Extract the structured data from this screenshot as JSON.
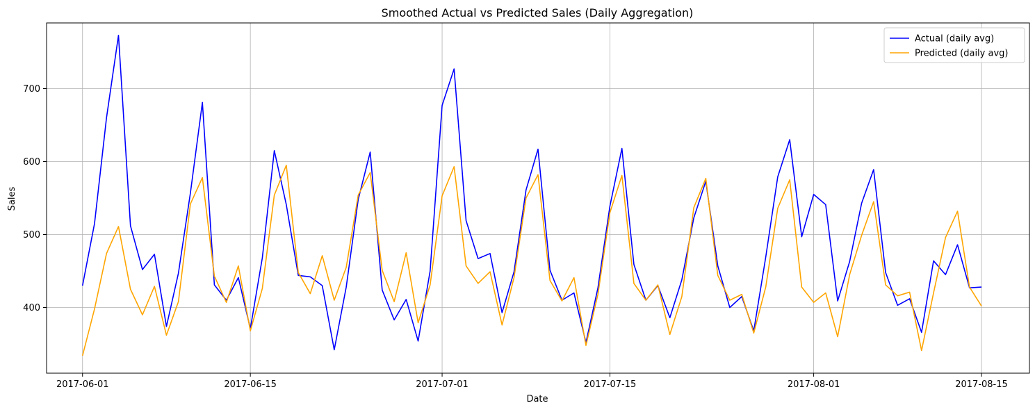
{
  "chart_data": {
    "type": "line",
    "title": "Smoothed Actual vs Predicted Sales (Daily Aggregation)",
    "xlabel": "Date",
    "ylabel": "Sales",
    "x_start": "2017-06-01",
    "x_end": "2017-08-15",
    "xlim": [
      "2017-05-29",
      "2017-08-19"
    ],
    "ylim": [
      310,
      790
    ],
    "x_ticks": [
      "2017-06-01",
      "2017-06-15",
      "2017-07-01",
      "2017-07-15",
      "2017-08-01",
      "2017-08-15"
    ],
    "y_ticks": [
      400,
      500,
      600,
      700
    ],
    "grid": true,
    "legend_position": "top-right",
    "series": [
      {
        "name": "Actual (daily avg)",
        "color": "#0000ff",
        "values": [
          430,
          515,
          660,
          773,
          512,
          452,
          473,
          374,
          447,
          557,
          681,
          431,
          410,
          441,
          371,
          468,
          615,
          541,
          444,
          442,
          430,
          342,
          428,
          548,
          613,
          424,
          383,
          411,
          354,
          450,
          677,
          727,
          519,
          467,
          474,
          393,
          449,
          561,
          617,
          451,
          410,
          420,
          352,
          427,
          539,
          618,
          459,
          410,
          430,
          386,
          438,
          523,
          573,
          457,
          400,
          415,
          368,
          469,
          579,
          630,
          497,
          555,
          541,
          409,
          463,
          543,
          589,
          448,
          403,
          412,
          366,
          464,
          445,
          486,
          427,
          428
        ]
      },
      {
        "name": "Predicted (daily avg)",
        "color": "#ffa500",
        "values": [
          334,
          398,
          474,
          511,
          425,
          390,
          429,
          362,
          408,
          542,
          578,
          443,
          407,
          457,
          368,
          426,
          554,
          595,
          448,
          419,
          471,
          410,
          455,
          554,
          585,
          451,
          408,
          475,
          379,
          431,
          553,
          593,
          457,
          433,
          449,
          376,
          441,
          550,
          582,
          437,
          409,
          441,
          348,
          418,
          530,
          581,
          433,
          410,
          431,
          363,
          415,
          537,
          577,
          444,
          410,
          418,
          365,
          428,
          536,
          575,
          428,
          407,
          420,
          360,
          445,
          499,
          545,
          431,
          416,
          421,
          341,
          420,
          496,
          532,
          428,
          402
        ]
      }
    ]
  }
}
